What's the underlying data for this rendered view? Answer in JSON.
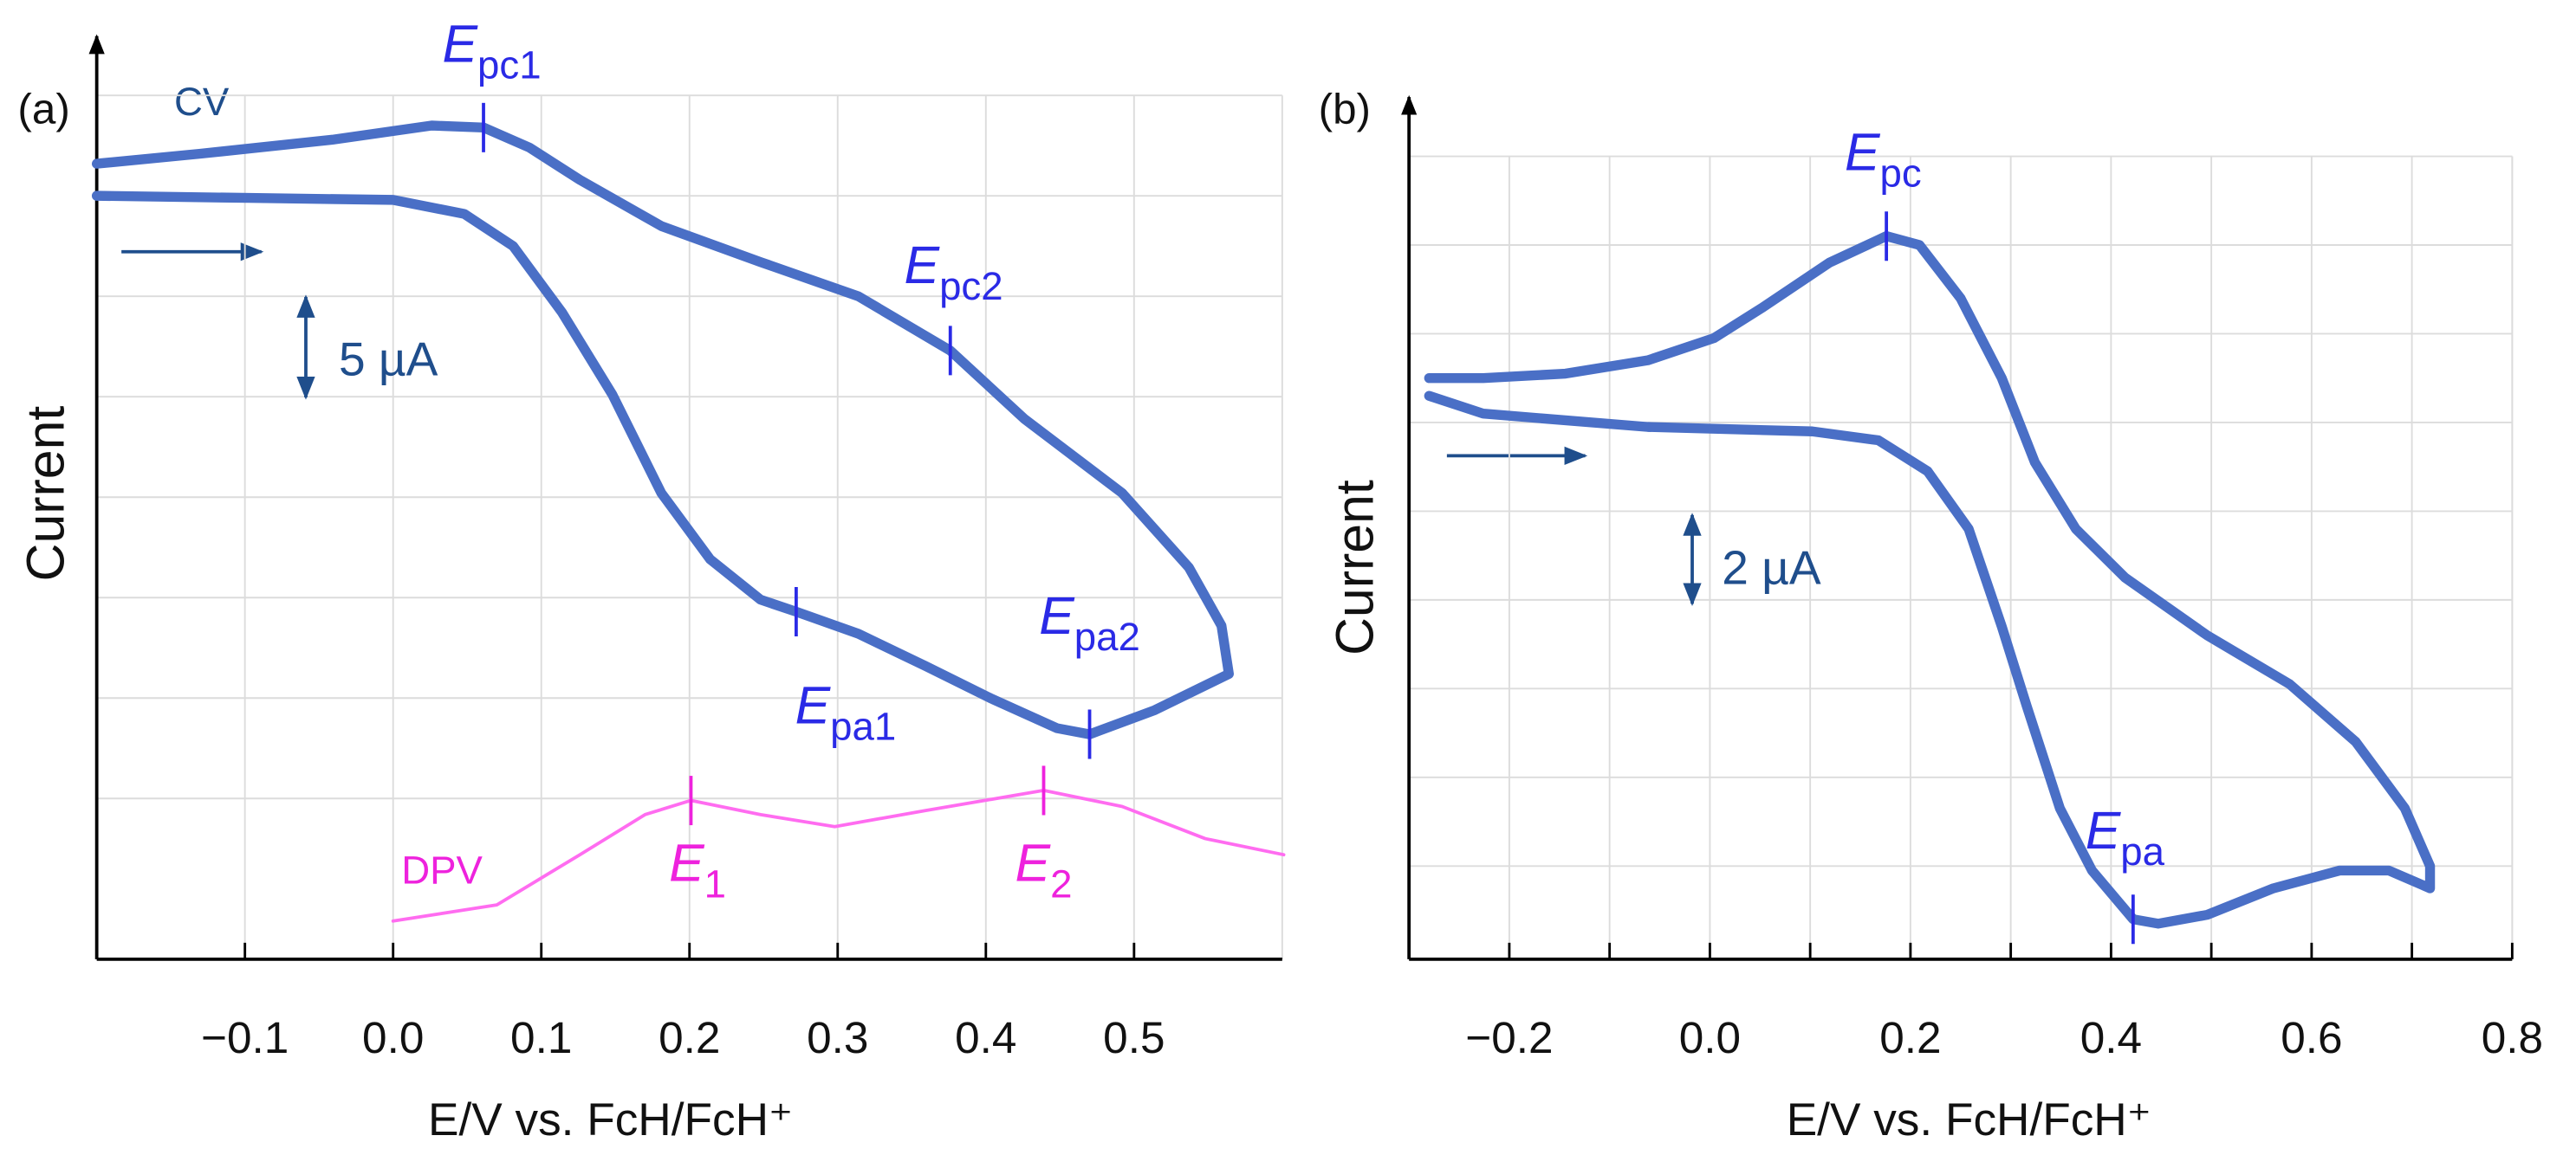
{
  "chart_data": [
    {
      "type": "line",
      "panel": "(a)",
      "ylabel": "Current",
      "xlabel": "E/V vs. FcH/FcH⁺",
      "xlim": [
        -0.2,
        0.6
      ],
      "xticks": [
        -0.1,
        0.0,
        0.1,
        0.2,
        0.3,
        0.4,
        0.5
      ],
      "ylim": [
        -3,
        40
      ],
      "yticks": [
        5,
        10,
        15,
        20,
        25,
        30,
        35
      ],
      "grid": true,
      "scale_bar": {
        "label": "5 µA",
        "value": 5
      },
      "series": [
        {
          "name": "CV",
          "color": "#4a6fc6",
          "x": [
            -0.2,
            -0.097,
            0.0,
            0.048,
            0.081,
            0.114,
            0.148,
            0.181,
            0.214,
            0.248,
            0.272,
            0.314,
            0.359,
            0.403,
            0.448,
            0.47,
            0.514,
            0.564,
            0.559,
            0.537,
            0.492,
            0.426,
            0.376,
            0.314,
            0.248,
            0.181,
            0.126,
            0.092,
            0.061,
            0.026,
            -0.041,
            -0.13,
            -0.2
          ],
          "values": [
            35.0,
            34.9,
            34.8,
            34.1,
            32.5,
            29.2,
            25.1,
            20.2,
            16.9,
            14.9,
            14.3,
            13.2,
            11.6,
            10.0,
            8.5,
            8.2,
            9.4,
            11.2,
            13.6,
            16.5,
            20.2,
            23.9,
            27.3,
            30.0,
            31.7,
            33.5,
            35.8,
            37.4,
            38.4,
            38.5,
            37.8,
            37.1,
            36.6
          ]
        },
        {
          "name": "DPV",
          "color": "#ff6cf0",
          "x": [
            0.0,
            0.07,
            0.126,
            0.17,
            0.201,
            0.248,
            0.298,
            0.359,
            0.439,
            0.492,
            0.548,
            0.601
          ],
          "values": [
            -1.1,
            -0.3,
            2.2,
            4.2,
            4.9,
            4.2,
            3.6,
            4.4,
            5.4,
            4.6,
            3.0,
            2.2
          ]
        }
      ],
      "annotations": [
        {
          "text": "E",
          "sub": "pc1",
          "x": 0.061,
          "y": 38.4,
          "color": "#2a2ae6"
        },
        {
          "text": "E",
          "sub": "pc2",
          "x": 0.376,
          "y": 27.3,
          "color": "#2a2ae6"
        },
        {
          "text": "E",
          "sub": "pa1",
          "x": 0.272,
          "y": 14.3,
          "color": "#2a2ae6"
        },
        {
          "text": "E",
          "sub": "pa2",
          "x": 0.47,
          "y": 8.2,
          "color": "#2a2ae6"
        },
        {
          "text": "E",
          "sub": "1",
          "x": 0.201,
          "y": 4.9,
          "color": "#ee22dd"
        },
        {
          "text": "E",
          "sub": "2",
          "x": 0.439,
          "y": 5.4,
          "color": "#ee22dd"
        }
      ]
    },
    {
      "type": "line",
      "panel": "(b)",
      "ylabel": "Current",
      "xlabel": "E/V vs. FcH/FcH⁺",
      "xlim": [
        -0.3,
        0.8
      ],
      "xticks": [
        -0.2,
        0.0,
        0.2,
        0.4,
        0.6,
        0.8
      ],
      "xminorticks": [
        -0.1,
        0.1,
        0.3,
        0.5,
        0.7
      ],
      "ylim": [
        -0.1,
        18
      ],
      "yticks": [
        2,
        4,
        6,
        8,
        10,
        12,
        14,
        16
      ],
      "grid": true,
      "scale_bar": {
        "label": "2 µA",
        "value": 2
      },
      "series": [
        {
          "color": "#4a6fc6",
          "x": [
            -0.28,
            -0.226,
            -0.062,
            0.102,
            0.168,
            0.217,
            0.258,
            0.291,
            0.316,
            0.349,
            0.381,
            0.422,
            0.447,
            0.496,
            0.562,
            0.628,
            0.677,
            0.718,
            0.718,
            0.693,
            0.644,
            0.578,
            0.496,
            0.414,
            0.365,
            0.324,
            0.291,
            0.25,
            0.209,
            0.176,
            0.119,
            0.053,
            0.004,
            -0.062,
            -0.144,
            -0.226,
            -0.28
          ],
          "values": [
            12.6,
            12.2,
            11.9,
            11.8,
            11.6,
            10.9,
            9.6,
            7.4,
            5.6,
            3.3,
            1.9,
            0.8,
            0.7,
            0.9,
            1.5,
            1.9,
            1.9,
            1.5,
            2.0,
            3.3,
            4.8,
            6.1,
            7.2,
            8.5,
            9.6,
            11.1,
            13.0,
            14.8,
            16.0,
            16.2,
            15.6,
            14.6,
            13.9,
            13.4,
            13.1,
            13.0,
            13.0
          ]
        }
      ],
      "annotations": [
        {
          "text": "E",
          "sub": "pc",
          "x": 0.176,
          "y": 16.2,
          "color": "#2a2ae6"
        },
        {
          "text": "E",
          "sub": "pa",
          "x": 0.422,
          "y": 0.8,
          "color": "#2a2ae6"
        }
      ]
    }
  ]
}
